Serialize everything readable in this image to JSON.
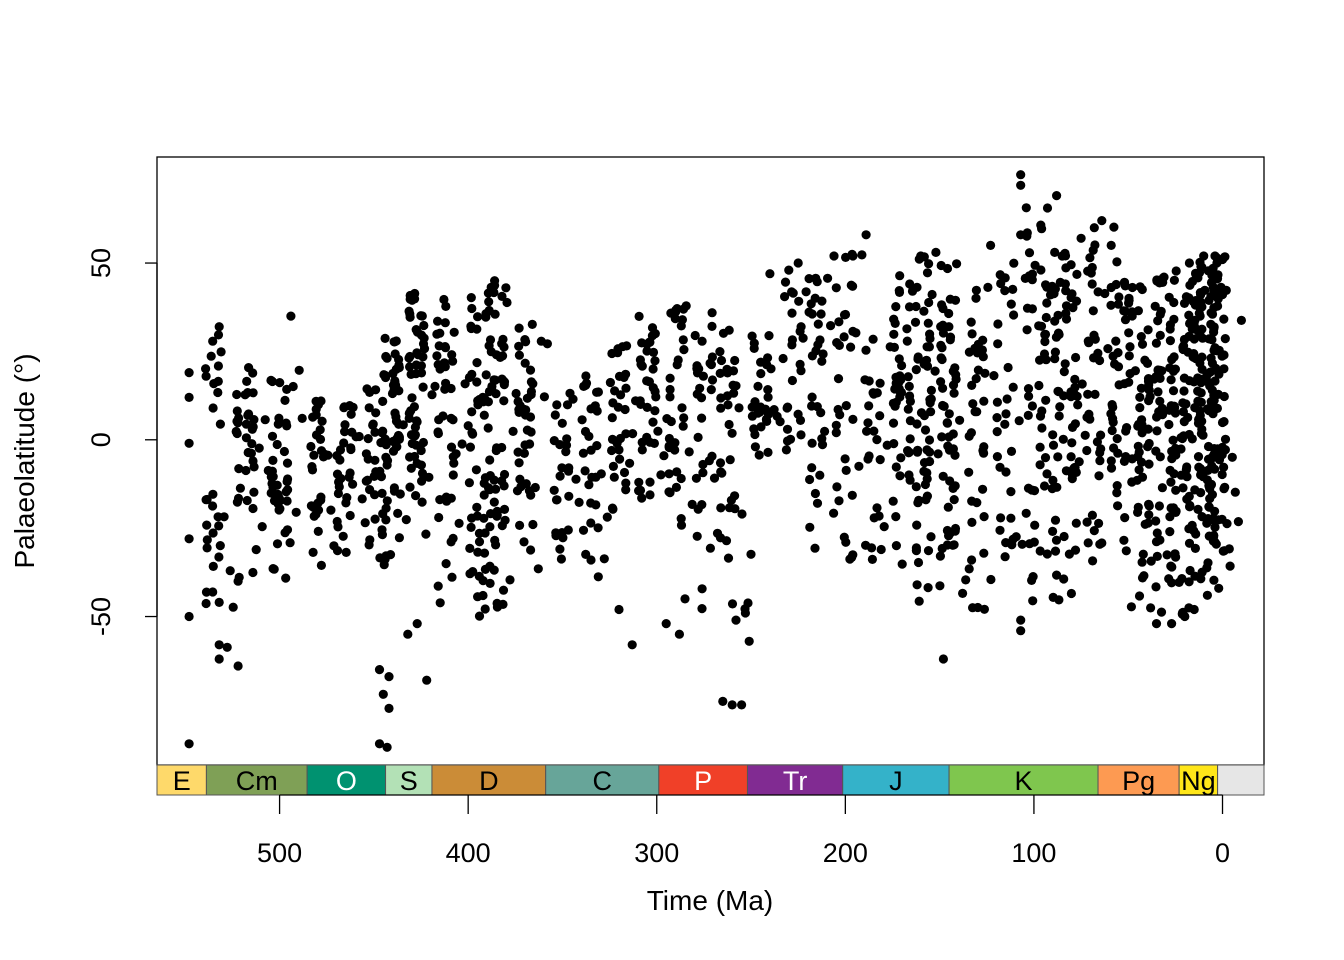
{
  "chart_data": {
    "type": "scatter",
    "title": "",
    "xlabel": "Time (Ma)",
    "ylabel": "Palaeolatitude (°)",
    "x_reversed": true,
    "xlim": [
      565,
      -22
    ],
    "ylim": [
      -92,
      80
    ],
    "x_ticks": [
      500,
      400,
      300,
      200,
      100,
      0
    ],
    "x_tick_labels": [
      "500",
      "400",
      "300",
      "200",
      "100",
      "0"
    ],
    "y_ticks": [
      -50,
      0,
      50
    ],
    "y_tick_labels": [
      "-50",
      "0",
      "50"
    ],
    "grid": false,
    "legend": "none",
    "point_color": "#000000",
    "periods": [
      {
        "label": "E",
        "start": 565.0,
        "end": 538.8,
        "color": "#FED96A",
        "text_color": "#000000"
      },
      {
        "label": "Cm",
        "start": 538.8,
        "end": 485.4,
        "color": "#7FA056",
        "text_color": "#000000"
      },
      {
        "label": "O",
        "start": 485.4,
        "end": 443.8,
        "color": "#009270",
        "text_color": "#ffffff"
      },
      {
        "label": "S",
        "start": 443.8,
        "end": 419.2,
        "color": "#B3E1B6",
        "text_color": "#000000"
      },
      {
        "label": "D",
        "start": 419.2,
        "end": 358.9,
        "color": "#CB8C37",
        "text_color": "#000000"
      },
      {
        "label": "C",
        "start": 358.9,
        "end": 298.9,
        "color": "#67A599",
        "text_color": "#000000"
      },
      {
        "label": "P",
        "start": 298.9,
        "end": 251.9,
        "color": "#F04028",
        "text_color": "#ffffff"
      },
      {
        "label": "Tr",
        "start": 251.9,
        "end": 201.4,
        "color": "#812B92",
        "text_color": "#ffffff"
      },
      {
        "label": "J",
        "start": 201.4,
        "end": 145.0,
        "color": "#34B2C9",
        "text_color": "#000000"
      },
      {
        "label": "K",
        "start": 145.0,
        "end": 66.0,
        "color": "#7FC64E",
        "text_color": "#000000"
      },
      {
        "label": "Pg",
        "start": 66.0,
        "end": 23.0,
        "color": "#FD9A52",
        "text_color": "#000000"
      },
      {
        "label": "Ng",
        "start": 23.0,
        "end": 2.6,
        "color": "#FFE619",
        "text_color": "#000000"
      },
      {
        "label": "",
        "start": 2.6,
        "end": -22.0,
        "color": "#E6E6E6",
        "text_color": "#000000"
      }
    ],
    "point_density_profile": [
      {
        "x": 535,
        "n": 26,
        "ymin": -62,
        "ymax": 30
      },
      {
        "x": 518,
        "n": 32,
        "ymin": -40,
        "ymax": 24
      },
      {
        "x": 500,
        "n": 38,
        "ymin": -40,
        "ymax": 20
      },
      {
        "x": 480,
        "n": 28,
        "ymin": -38,
        "ymax": 15
      },
      {
        "x": 465,
        "n": 26,
        "ymin": -36,
        "ymax": 10
      },
      {
        "x": 450,
        "n": 30,
        "ymin": -36,
        "ymax": 18
      },
      {
        "x": 440,
        "n": 48,
        "ymin": -36,
        "ymax": 30
      },
      {
        "x": 428,
        "n": 52,
        "ymin": -32,
        "ymax": 42
      },
      {
        "x": 412,
        "n": 40,
        "ymin": -48,
        "ymax": 42
      },
      {
        "x": 395,
        "n": 48,
        "ymin": -50,
        "ymax": 44
      },
      {
        "x": 385,
        "n": 54,
        "ymin": -50,
        "ymax": 44
      },
      {
        "x": 370,
        "n": 36,
        "ymin": -40,
        "ymax": 38
      },
      {
        "x": 350,
        "n": 24,
        "ymin": -34,
        "ymax": 16
      },
      {
        "x": 335,
        "n": 24,
        "ymin": -44,
        "ymax": 20
      },
      {
        "x": 320,
        "n": 26,
        "ymin": -20,
        "ymax": 28
      },
      {
        "x": 305,
        "n": 32,
        "ymin": -18,
        "ymax": 38
      },
      {
        "x": 290,
        "n": 30,
        "ymin": -28,
        "ymax": 38
      },
      {
        "x": 275,
        "n": 26,
        "ymin": -48,
        "ymax": 36
      },
      {
        "x": 262,
        "n": 28,
        "ymin": -50,
        "ymax": 32
      },
      {
        "x": 245,
        "n": 28,
        "ymin": -10,
        "ymax": 30
      },
      {
        "x": 228,
        "n": 22,
        "ymin": -4,
        "ymax": 46
      },
      {
        "x": 215,
        "n": 26,
        "ymin": -34,
        "ymax": 48
      },
      {
        "x": 200,
        "n": 26,
        "ymin": -34,
        "ymax": 56
      },
      {
        "x": 185,
        "n": 22,
        "ymin": -36,
        "ymax": 32
      },
      {
        "x": 170,
        "n": 44,
        "ymin": -38,
        "ymax": 48
      },
      {
        "x": 158,
        "n": 52,
        "ymin": -46,
        "ymax": 52
      },
      {
        "x": 145,
        "n": 50,
        "ymin": -46,
        "ymax": 50
      },
      {
        "x": 130,
        "n": 34,
        "ymin": -48,
        "ymax": 44
      },
      {
        "x": 115,
        "n": 26,
        "ymin": -50,
        "ymax": 50
      },
      {
        "x": 100,
        "n": 36,
        "ymin": -48,
        "ymax": 70
      },
      {
        "x": 90,
        "n": 40,
        "ymin": -46,
        "ymax": 46
      },
      {
        "x": 80,
        "n": 38,
        "ymin": -44,
        "ymax": 54
      },
      {
        "x": 68,
        "n": 32,
        "ymin": -40,
        "ymax": 60
      },
      {
        "x": 55,
        "n": 36,
        "ymin": -34,
        "ymax": 46
      },
      {
        "x": 45,
        "n": 40,
        "ymin": -48,
        "ymax": 46
      },
      {
        "x": 35,
        "n": 50,
        "ymin": -50,
        "ymax": 48
      },
      {
        "x": 25,
        "n": 60,
        "ymin": -50,
        "ymax": 50
      },
      {
        "x": 15,
        "n": 66,
        "ymin": -48,
        "ymax": 52
      },
      {
        "x": 8,
        "n": 70,
        "ymin": -46,
        "ymax": 52
      },
      {
        "x": 2,
        "n": 60,
        "ymin": -44,
        "ymax": 52
      }
    ],
    "points": [
      [
        548,
        -86
      ],
      [
        548,
        19
      ],
      [
        548,
        12
      ],
      [
        548,
        -28
      ],
      [
        548,
        -50
      ],
      [
        548,
        -1
      ],
      [
        532,
        -58
      ],
      [
        532,
        -62
      ],
      [
        532,
        -46
      ],
      [
        532,
        32
      ],
      [
        522,
        -64
      ],
      [
        522,
        -40
      ],
      [
        494,
        35
      ],
      [
        447,
        -65
      ],
      [
        442,
        -67
      ],
      [
        445,
        -72
      ],
      [
        442,
        -76
      ],
      [
        447,
        -86
      ],
      [
        443,
        -87
      ],
      [
        422,
        -68
      ],
      [
        427,
        -52
      ],
      [
        432,
        -55
      ],
      [
        380,
        43
      ],
      [
        386,
        45
      ],
      [
        320,
        -48
      ],
      [
        313,
        -58
      ],
      [
        295,
        -52
      ],
      [
        288,
        -55
      ],
      [
        285,
        -45
      ],
      [
        265,
        -74
      ],
      [
        260,
        -75
      ],
      [
        255,
        -75
      ],
      [
        258,
        -51
      ],
      [
        253,
        -49
      ],
      [
        251,
        -57
      ],
      [
        240,
        47
      ],
      [
        230,
        48
      ],
      [
        225,
        50
      ],
      [
        206,
        52
      ],
      [
        196,
        52
      ],
      [
        189,
        58
      ],
      [
        160,
        52
      ],
      [
        152,
        53
      ],
      [
        148,
        -62
      ],
      [
        123,
        55
      ],
      [
        107,
        75
      ],
      [
        107,
        72
      ],
      [
        107,
        58
      ],
      [
        107,
        -54
      ],
      [
        107,
        -51
      ],
      [
        89,
        53
      ],
      [
        85,
        52
      ],
      [
        75,
        57
      ],
      [
        68,
        60
      ],
      [
        64,
        62
      ],
      [
        59,
        55
      ],
      [
        35,
        -52
      ],
      [
        27,
        -52
      ],
      [
        20,
        -50
      ],
      [
        15,
        -48
      ],
      [
        8,
        -44
      ],
      [
        2,
        -42
      ],
      [
        10,
        52
      ],
      [
        4,
        52
      ],
      [
        0,
        51
      ]
    ]
  }
}
